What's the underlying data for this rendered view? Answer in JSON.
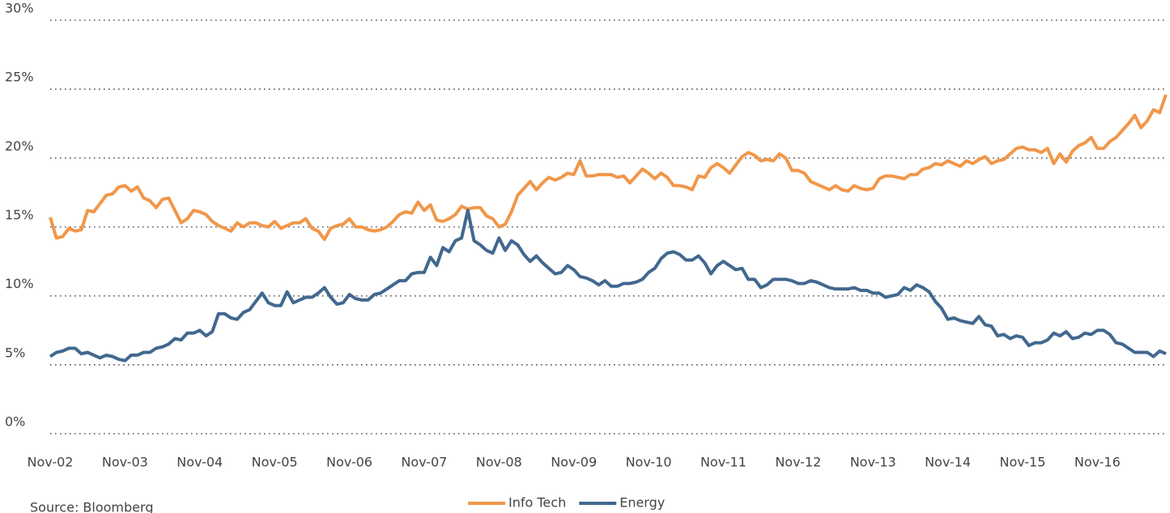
{
  "chart_data": {
    "type": "line",
    "categories": [
      "Nov-02",
      null,
      null,
      null,
      null,
      null,
      null,
      null,
      null,
      null,
      null,
      null,
      "Nov-03",
      null,
      null,
      null,
      null,
      null,
      null,
      null,
      null,
      null,
      null,
      null,
      "Nov-04",
      null,
      null,
      null,
      null,
      null,
      null,
      null,
      null,
      null,
      null,
      null,
      "Nov-05",
      null,
      null,
      null,
      null,
      null,
      null,
      null,
      null,
      null,
      null,
      null,
      "Nov-06",
      null,
      null,
      null,
      null,
      null,
      null,
      null,
      null,
      null,
      null,
      null,
      "Nov-07",
      null,
      null,
      null,
      null,
      null,
      null,
      null,
      null,
      null,
      null,
      null,
      "Nov-08",
      null,
      null,
      null,
      null,
      null,
      null,
      null,
      null,
      null,
      null,
      null,
      "Nov-09",
      null,
      null,
      null,
      null,
      null,
      null,
      null,
      null,
      null,
      null,
      null,
      "Nov-10",
      null,
      null,
      null,
      null,
      null,
      null,
      null,
      null,
      null,
      null,
      null,
      "Nov-11",
      null,
      null,
      null,
      null,
      null,
      null,
      null,
      null,
      null,
      null,
      null,
      "Nov-12",
      null,
      null,
      null,
      null,
      null,
      null,
      null,
      null,
      null,
      null,
      null,
      "Nov-13",
      null,
      null,
      null,
      null,
      null,
      null,
      null,
      null,
      null,
      null,
      null,
      "Nov-14",
      null,
      null,
      null,
      null,
      null,
      null,
      null,
      null,
      null,
      null,
      null,
      "Nov-15",
      null,
      null,
      null,
      null,
      null,
      null,
      null,
      null,
      null,
      null,
      null,
      "Nov-16",
      null,
      null,
      null,
      null,
      null,
      null,
      null,
      null,
      null,
      null,
      null
    ],
    "series": [
      {
        "name": "Info Tech",
        "color": "#f0974a",
        "values": [
          15.7,
          14.2,
          14.3,
          14.9,
          14.7,
          14.8,
          16.2,
          16.1,
          16.7,
          17.3,
          17.4,
          17.9,
          18.0,
          17.6,
          17.9,
          17.1,
          16.9,
          16.4,
          17.0,
          17.1,
          16.2,
          15.3,
          15.6,
          16.2,
          16.1,
          15.9,
          15.4,
          15.1,
          14.9,
          14.7,
          15.3,
          15.0,
          15.3,
          15.3,
          15.1,
          15.0,
          15.4,
          14.9,
          15.1,
          15.3,
          15.3,
          15.6,
          14.9,
          14.7,
          14.1,
          14.9,
          15.1,
          15.2,
          15.6,
          15.0,
          15.0,
          14.8,
          14.7,
          14.8,
          15.0,
          15.4,
          15.9,
          16.1,
          16.0,
          16.8,
          16.2,
          16.6,
          15.5,
          15.4,
          15.6,
          15.9,
          16.5,
          16.3,
          16.4,
          16.4,
          15.8,
          15.6,
          15.0,
          15.2,
          16.1,
          17.3,
          17.8,
          18.3,
          17.7,
          18.2,
          18.6,
          18.4,
          18.6,
          18.9,
          18.8,
          19.8,
          18.7,
          18.7,
          18.8,
          18.8,
          18.8,
          18.6,
          18.7,
          18.2,
          18.7,
          19.2,
          18.9,
          18.5,
          18.9,
          18.6,
          18.0,
          18.0,
          17.9,
          17.7,
          18.7,
          18.6,
          19.3,
          19.6,
          19.3,
          18.9,
          19.5,
          20.1,
          20.4,
          20.2,
          19.8,
          19.9,
          19.8,
          20.3,
          20.0,
          19.1,
          19.1,
          18.9,
          18.3,
          18.1,
          17.9,
          17.7,
          18.0,
          17.7,
          17.6,
          18.0,
          17.8,
          17.7,
          17.8,
          18.5,
          18.7,
          18.7,
          18.6,
          18.5,
          18.8,
          18.8,
          19.2,
          19.3,
          19.6,
          19.5,
          19.8,
          19.6,
          19.4,
          19.8,
          19.6,
          19.9,
          20.1,
          19.6,
          19.8,
          19.9,
          20.3,
          20.7,
          20.8,
          20.6,
          20.6,
          20.4,
          20.7,
          19.6,
          20.3,
          19.7,
          20.5,
          20.9,
          21.1,
          21.5,
          20.7,
          20.7,
          21.2,
          21.5,
          22.0,
          22.5,
          23.1,
          22.2,
          22.7,
          23.5,
          23.3,
          24.6
        ]
      },
      {
        "name": "Energy",
        "color": "#41688f",
        "values": [
          5.6,
          5.9,
          6.0,
          6.2,
          6.2,
          5.8,
          5.9,
          5.7,
          5.5,
          5.7,
          5.6,
          5.4,
          5.3,
          5.7,
          5.7,
          5.9,
          5.9,
          6.2,
          6.3,
          6.5,
          6.9,
          6.8,
          7.3,
          7.3,
          7.5,
          7.1,
          7.4,
          8.7,
          8.7,
          8.4,
          8.3,
          8.8,
          9.0,
          9.6,
          10.2,
          9.5,
          9.3,
          9.3,
          10.3,
          9.5,
          9.7,
          9.9,
          9.9,
          10.2,
          10.6,
          9.9,
          9.4,
          9.5,
          10.1,
          9.8,
          9.7,
          9.7,
          10.1,
          10.2,
          10.5,
          10.8,
          11.1,
          11.1,
          11.6,
          11.7,
          11.7,
          12.8,
          12.2,
          13.5,
          13.2,
          14.0,
          14.2,
          16.2,
          14.0,
          13.7,
          13.3,
          13.1,
          14.2,
          13.3,
          14.0,
          13.7,
          13.0,
          12.5,
          12.9,
          12.4,
          12.0,
          11.6,
          11.7,
          12.2,
          11.9,
          11.4,
          11.3,
          11.1,
          10.8,
          11.1,
          10.7,
          10.7,
          10.9,
          10.9,
          11.0,
          11.2,
          11.7,
          12.0,
          12.7,
          13.1,
          13.2,
          13.0,
          12.6,
          12.6,
          12.9,
          12.4,
          11.6,
          12.2,
          12.5,
          12.2,
          11.9,
          12.0,
          11.2,
          11.2,
          10.6,
          10.8,
          11.2,
          11.2,
          11.2,
          11.1,
          10.9,
          10.9,
          11.1,
          11.0,
          10.8,
          10.6,
          10.5,
          10.5,
          10.5,
          10.6,
          10.4,
          10.4,
          10.2,
          10.2,
          9.9,
          10.0,
          10.1,
          10.6,
          10.4,
          10.8,
          10.6,
          10.3,
          9.6,
          9.1,
          8.3,
          8.4,
          8.2,
          8.1,
          8.0,
          8.5,
          7.9,
          7.8,
          7.1,
          7.2,
          6.9,
          7.1,
          7.0,
          6.4,
          6.6,
          6.6,
          6.8,
          7.3,
          7.1,
          7.4,
          6.9,
          7.0,
          7.3,
          7.2,
          7.5,
          7.5,
          7.2,
          6.6,
          6.5,
          6.2,
          5.9,
          5.9,
          5.9,
          5.6,
          6.0,
          5.8
        ]
      }
    ],
    "ylim": [
      0,
      30
    ],
    "yticks": [
      {
        "value": 0,
        "label": "0%"
      },
      {
        "value": 5,
        "label": "5%"
      },
      {
        "value": 10,
        "label": "10%"
      },
      {
        "value": 15,
        "label": "15%"
      },
      {
        "value": 20,
        "label": "20%"
      },
      {
        "value": 25,
        "label": "25%"
      },
      {
        "value": 30,
        "label": "30%"
      }
    ],
    "grid": true,
    "legend": "bottom",
    "source": "Source: Bloomberg"
  }
}
